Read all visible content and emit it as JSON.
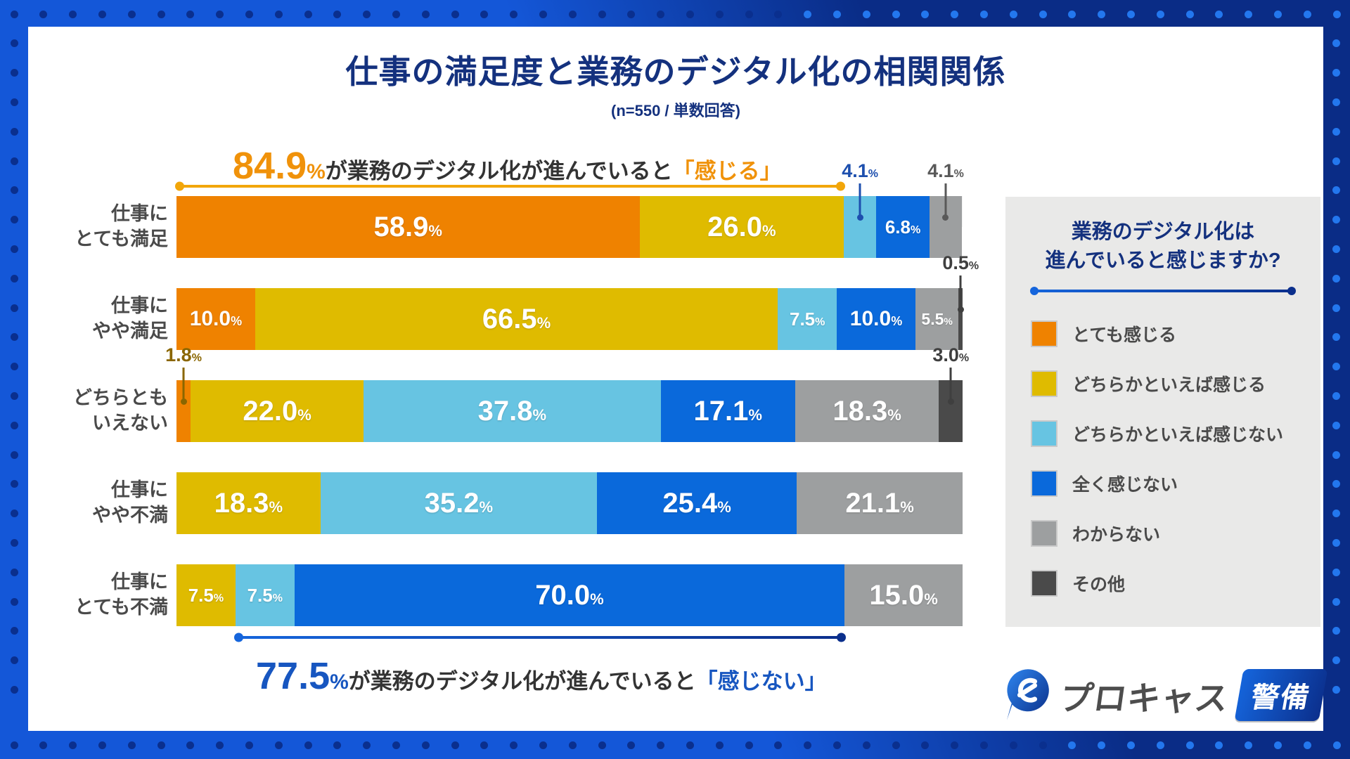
{
  "title": "仕事の満足度と業務のデジタル化の相関関係",
  "subtitle": "(n=550 / 単数回答)",
  "annotation_top": {
    "number": "84.9",
    "percent": "%",
    "body": "が業務のデジタル化が進んでいると",
    "quote": "「感じる」",
    "bracket": {
      "start_pct": 0,
      "end_pct": 84.9
    }
  },
  "annotation_bottom": {
    "number": "77.5",
    "percent": "%",
    "body": "が業務のデジタル化が進んでいると",
    "quote": "「感じない」",
    "bracket": {
      "start_pct": 7.5,
      "end_pct": 85.0
    }
  },
  "legend": {
    "title_line1": "業務のデジタル化は",
    "title_line2": "進んでいると感じますか?",
    "items": [
      {
        "key": "orange",
        "label": "とても感じる"
      },
      {
        "key": "yellow",
        "label": "どちらかといえば感じる"
      },
      {
        "key": "lightblue",
        "label": "どちらかといえば感じない"
      },
      {
        "key": "blue",
        "label": "全く感じない"
      },
      {
        "key": "gray",
        "label": "わからない"
      },
      {
        "key": "dark",
        "label": "その他"
      }
    ]
  },
  "logo": {
    "brand": "プロキャス",
    "badge": "警備"
  },
  "colors": {
    "orange": "#EF8200",
    "yellow": "#DFBB00",
    "lightblue": "#67C4E2",
    "blue": "#0A69DB",
    "gray": "#9D9FA0",
    "dark": "#4A4A4A",
    "navy": "#14317E",
    "label": "#4A4A4A",
    "accent_orange": "#F0920A",
    "bracket_orange": "#F2A60A",
    "accent_blue": "#1756C0",
    "frame_bright": "#1457D8",
    "frame_navy": "#0A2C86",
    "dot_navy": "#0A2F8E",
    "dot_bright": "#2377EE",
    "panel": "#E9E9E8"
  },
  "chart_data": {
    "type": "bar",
    "orientation": "horizontal-stacked",
    "unit": "%",
    "xlim": [
      0,
      100
    ],
    "grid": false,
    "legend_position": "right-panel",
    "categories": [
      "仕事にとても満足",
      "仕事にやや満足",
      "どちらともいえない",
      "仕事にやや不満",
      "仕事にとても不満"
    ],
    "series": [
      {
        "name": "とても感じる",
        "color_key": "orange",
        "values": [
          58.9,
          10.0,
          1.8,
          0,
          0
        ]
      },
      {
        "name": "どちらかといえば感じる",
        "color_key": "yellow",
        "values": [
          26.0,
          66.5,
          22.0,
          18.3,
          7.5
        ]
      },
      {
        "name": "どちらかといえば感じない",
        "color_key": "lightblue",
        "values": [
          4.1,
          7.5,
          37.8,
          35.2,
          7.5
        ]
      },
      {
        "name": "全く感じない",
        "color_key": "blue",
        "values": [
          6.8,
          10.0,
          17.1,
          25.4,
          70.0
        ]
      },
      {
        "name": "わからない",
        "color_key": "gray",
        "values": [
          4.1,
          5.5,
          18.3,
          21.1,
          15.0
        ]
      },
      {
        "name": "その他",
        "color_key": "dark",
        "values": [
          0,
          0.5,
          3.0,
          0,
          0
        ]
      }
    ],
    "rows": [
      {
        "label_lines": [
          "仕事に",
          "とても満足"
        ],
        "segments": [
          {
            "key": "orange",
            "value": 58.9,
            "placement": "in"
          },
          {
            "key": "yellow",
            "value": 26.0,
            "placement": "in"
          },
          {
            "key": "lightblue",
            "value": 4.1,
            "placement": "above",
            "callout_color": "#1D4FAE"
          },
          {
            "key": "blue",
            "value": 6.8,
            "placement": "in"
          },
          {
            "key": "gray",
            "value": 4.1,
            "placement": "above",
            "callout_color": "#595959"
          }
        ]
      },
      {
        "label_lines": [
          "仕事に",
          "やや満足"
        ],
        "segments": [
          {
            "key": "orange",
            "value": 10.0,
            "placement": "in"
          },
          {
            "key": "yellow",
            "value": 66.5,
            "placement": "in"
          },
          {
            "key": "lightblue",
            "value": 7.5,
            "placement": "in"
          },
          {
            "key": "blue",
            "value": 10.0,
            "placement": "in"
          },
          {
            "key": "gray",
            "value": 5.5,
            "placement": "in"
          },
          {
            "key": "dark",
            "value": 0.5,
            "placement": "above",
            "callout_color": "#3F3F3F"
          }
        ]
      },
      {
        "label_lines": [
          "どちらとも",
          "いえない"
        ],
        "segments": [
          {
            "key": "orange",
            "value": 1.8,
            "placement": "above",
            "callout_color": "#8A6600"
          },
          {
            "key": "yellow",
            "value": 22.0,
            "placement": "in"
          },
          {
            "key": "lightblue",
            "value": 37.8,
            "placement": "in"
          },
          {
            "key": "blue",
            "value": 17.1,
            "placement": "in"
          },
          {
            "key": "gray",
            "value": 18.3,
            "placement": "in"
          },
          {
            "key": "dark",
            "value": 3.0,
            "placement": "above",
            "callout_color": "#3F3F3F"
          }
        ]
      },
      {
        "label_lines": [
          "仕事に",
          "やや不満"
        ],
        "segments": [
          {
            "key": "yellow",
            "value": 18.3,
            "placement": "in"
          },
          {
            "key": "lightblue",
            "value": 35.2,
            "placement": "in"
          },
          {
            "key": "blue",
            "value": 25.4,
            "placement": "in"
          },
          {
            "key": "gray",
            "value": 21.1,
            "placement": "in"
          }
        ]
      },
      {
        "label_lines": [
          "仕事に",
          "とても不満"
        ],
        "segments": [
          {
            "key": "yellow",
            "value": 7.5,
            "placement": "in"
          },
          {
            "key": "lightblue",
            "value": 7.5,
            "placement": "in"
          },
          {
            "key": "blue",
            "value": 70.0,
            "placement": "in"
          },
          {
            "key": "gray",
            "value": 15.0,
            "placement": "in"
          }
        ]
      }
    ]
  }
}
